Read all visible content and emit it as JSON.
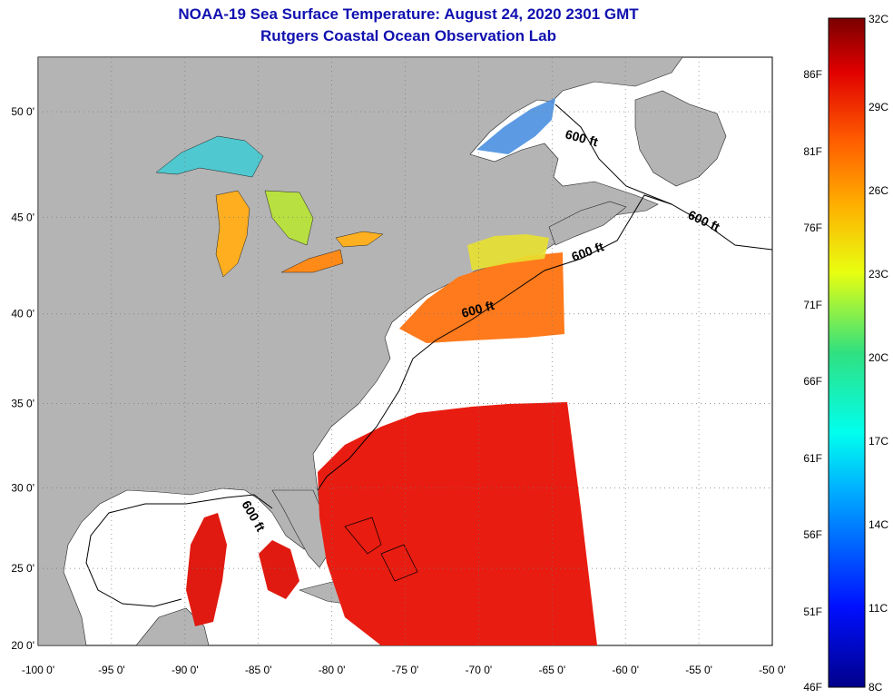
{
  "title_line1": "NOAA-19 Sea Surface Temperature:  August 24, 2020 2301 GMT",
  "title_line2": "Rutgers Coastal Ocean Observation Lab",
  "lat_ticks": [
    {
      "value": 50,
      "label": "50 0'"
    },
    {
      "value": 45,
      "label": "45 0'"
    },
    {
      "value": 40,
      "label": "40 0'"
    },
    {
      "value": 35,
      "label": "35 0'"
    },
    {
      "value": 30,
      "label": "30 0'"
    },
    {
      "value": 25,
      "label": "25 0'"
    },
    {
      "value": 20,
      "label": "20 0'"
    }
  ],
  "lon_ticks": [
    {
      "value": -100,
      "label": "-100 0'"
    },
    {
      "value": -95,
      "label": "-95 0'"
    },
    {
      "value": -90,
      "label": "-90 0'"
    },
    {
      "value": -85,
      "label": "-85 0'"
    },
    {
      "value": -80,
      "label": "-80 0'"
    },
    {
      "value": -75,
      "label": "-75 0'"
    },
    {
      "value": -70,
      "label": "-70 0'"
    },
    {
      "value": -65,
      "label": "-65 0'"
    },
    {
      "value": -60,
      "label": "-60 0'"
    },
    {
      "value": -55,
      "label": "-55 0'"
    },
    {
      "value": -50,
      "label": "-50 0'"
    }
  ],
  "isobath_labels": [
    "600 ft",
    "600 ft",
    "600 ft",
    "600 ft",
    "600 ft"
  ],
  "colorbar": {
    "fahrenheit": [
      "86F",
      "81F",
      "76F",
      "71F",
      "66F",
      "61F",
      "56F",
      "51F",
      "46F"
    ],
    "celsius": [
      "32C",
      "29C",
      "26C",
      "23C",
      "20C",
      "17C",
      "14C",
      "11C",
      "8C"
    ]
  },
  "colors": {
    "land": "#b4b4b4",
    "ocean_nodata": "#ffffff",
    "title": "#1010b0"
  }
}
